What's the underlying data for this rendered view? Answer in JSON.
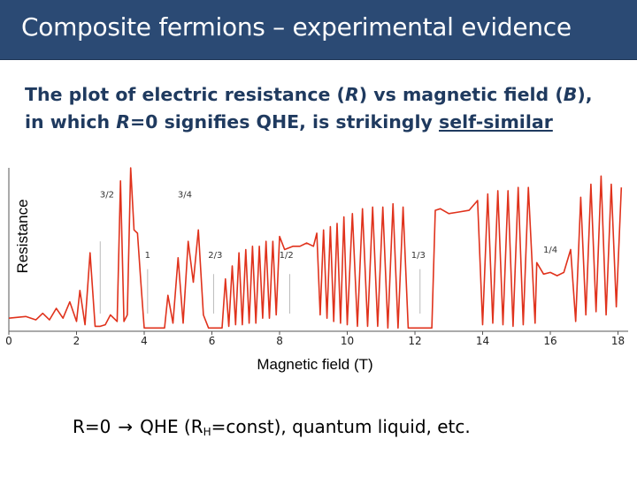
{
  "title": "Composite fermions – experimental evidence",
  "subtitle": {
    "p1": "The plot of electric resistance (",
    "R1": "R",
    "p2": ") vs magnetic field (",
    "B": "B",
    "p3": "),",
    "p4": "in which ",
    "R2": "R",
    "p5": "=0 signifies QHE, is strikingly ",
    "self_similar": "self-similar"
  },
  "footer": {
    "lhs": "R=0",
    "arrow": "→",
    "qhe": "QHE (R",
    "sub": "H",
    "rest": "=const),  quantum liquid,  etc."
  },
  "chart_data": {
    "type": "line",
    "xlabel": "Magnetic field (T)",
    "ylabel": "Resistance",
    "xlim": [
      0,
      18.3
    ],
    "ylim": [
      0,
      1
    ],
    "xticks": [
      0,
      2,
      4,
      6,
      8,
      10,
      12,
      14,
      16,
      18
    ],
    "series_color": "#e0321c",
    "annotations": [
      {
        "text": "3/2",
        "x": 2.9,
        "y": 0.82
      },
      {
        "text": "3/4",
        "x": 5.2,
        "y": 0.82
      },
      {
        "text": "1",
        "x": 4.1,
        "y": 0.45
      },
      {
        "text": "2/3",
        "x": 6.1,
        "y": 0.45
      },
      {
        "text": "1/2",
        "x": 8.2,
        "y": 0.45
      },
      {
        "text": "1/3",
        "x": 12.1,
        "y": 0.45
      },
      {
        "text": "1/4",
        "x": 16.0,
        "y": 0.48
      }
    ],
    "plateaus": [
      {
        "x": [
          2.7,
          2.72
        ],
        "y": 0.55
      },
      {
        "x": [
          4.1,
          4.12
        ],
        "y": 0.38
      },
      {
        "x": [
          6.05,
          6.07
        ],
        "y": 0.35
      },
      {
        "x": [
          8.3,
          8.32
        ],
        "y": 0.35
      },
      {
        "x": [
          12.15,
          12.17
        ],
        "y": 0.38
      }
    ],
    "points": [
      [
        0.0,
        0.08
      ],
      [
        0.5,
        0.09
      ],
      [
        0.8,
        0.07
      ],
      [
        1.0,
        0.11
      ],
      [
        1.2,
        0.07
      ],
      [
        1.4,
        0.14
      ],
      [
        1.6,
        0.08
      ],
      [
        1.8,
        0.18
      ],
      [
        2.0,
        0.06
      ],
      [
        2.1,
        0.25
      ],
      [
        2.25,
        0.04
      ],
      [
        2.4,
        0.48
      ],
      [
        2.55,
        0.03
      ],
      [
        2.7,
        0.03
      ],
      [
        2.85,
        0.04
      ],
      [
        3.0,
        0.1
      ],
      [
        3.2,
        0.06
      ],
      [
        3.3,
        0.92
      ],
      [
        3.4,
        0.06
      ],
      [
        3.5,
        0.1
      ],
      [
        3.6,
        1.0
      ],
      [
        3.7,
        0.62
      ],
      [
        3.8,
        0.6
      ],
      [
        3.9,
        0.3
      ],
      [
        4.0,
        0.02
      ],
      [
        4.6,
        0.02
      ],
      [
        4.7,
        0.22
      ],
      [
        4.85,
        0.05
      ],
      [
        5.0,
        0.45
      ],
      [
        5.15,
        0.05
      ],
      [
        5.3,
        0.55
      ],
      [
        5.45,
        0.3
      ],
      [
        5.6,
        0.62
      ],
      [
        5.75,
        0.1
      ],
      [
        5.9,
        0.02
      ],
      [
        6.3,
        0.02
      ],
      [
        6.4,
        0.32
      ],
      [
        6.5,
        0.03
      ],
      [
        6.6,
        0.4
      ],
      [
        6.7,
        0.04
      ],
      [
        6.8,
        0.48
      ],
      [
        6.9,
        0.04
      ],
      [
        7.0,
        0.5
      ],
      [
        7.1,
        0.05
      ],
      [
        7.2,
        0.52
      ],
      [
        7.3,
        0.05
      ],
      [
        7.4,
        0.52
      ],
      [
        7.5,
        0.08
      ],
      [
        7.6,
        0.55
      ],
      [
        7.7,
        0.08
      ],
      [
        7.8,
        0.55
      ],
      [
        7.9,
        0.1
      ],
      [
        8.0,
        0.58
      ],
      [
        8.15,
        0.5
      ],
      [
        8.4,
        0.52
      ],
      [
        8.6,
        0.52
      ],
      [
        8.8,
        0.54
      ],
      [
        9.0,
        0.52
      ],
      [
        9.1,
        0.6
      ],
      [
        9.2,
        0.1
      ],
      [
        9.3,
        0.62
      ],
      [
        9.4,
        0.08
      ],
      [
        9.5,
        0.64
      ],
      [
        9.6,
        0.06
      ],
      [
        9.7,
        0.66
      ],
      [
        9.8,
        0.05
      ],
      [
        9.9,
        0.7
      ],
      [
        10.0,
        0.04
      ],
      [
        10.15,
        0.72
      ],
      [
        10.3,
        0.03
      ],
      [
        10.45,
        0.75
      ],
      [
        10.6,
        0.03
      ],
      [
        10.75,
        0.76
      ],
      [
        10.9,
        0.03
      ],
      [
        11.05,
        0.76
      ],
      [
        11.2,
        0.02
      ],
      [
        11.35,
        0.78
      ],
      [
        11.5,
        0.02
      ],
      [
        11.65,
        0.76
      ],
      [
        11.8,
        0.02
      ],
      [
        12.5,
        0.02
      ],
      [
        12.6,
        0.74
      ],
      [
        12.75,
        0.75
      ],
      [
        13.0,
        0.72
      ],
      [
        13.3,
        0.73
      ],
      [
        13.6,
        0.74
      ],
      [
        13.85,
        0.8
      ],
      [
        14.0,
        0.04
      ],
      [
        14.15,
        0.84
      ],
      [
        14.3,
        0.05
      ],
      [
        14.45,
        0.86
      ],
      [
        14.6,
        0.04
      ],
      [
        14.75,
        0.86
      ],
      [
        14.9,
        0.03
      ],
      [
        15.05,
        0.88
      ],
      [
        15.2,
        0.04
      ],
      [
        15.35,
        0.88
      ],
      [
        15.55,
        0.05
      ],
      [
        15.6,
        0.42
      ],
      [
        15.8,
        0.35
      ],
      [
        16.0,
        0.36
      ],
      [
        16.2,
        0.34
      ],
      [
        16.4,
        0.36
      ],
      [
        16.6,
        0.5
      ],
      [
        16.75,
        0.06
      ],
      [
        16.9,
        0.82
      ],
      [
        17.05,
        0.1
      ],
      [
        17.2,
        0.9
      ],
      [
        17.35,
        0.12
      ],
      [
        17.5,
        0.95
      ],
      [
        17.65,
        0.1
      ],
      [
        17.8,
        0.9
      ],
      [
        17.95,
        0.15
      ],
      [
        18.1,
        0.88
      ]
    ]
  }
}
